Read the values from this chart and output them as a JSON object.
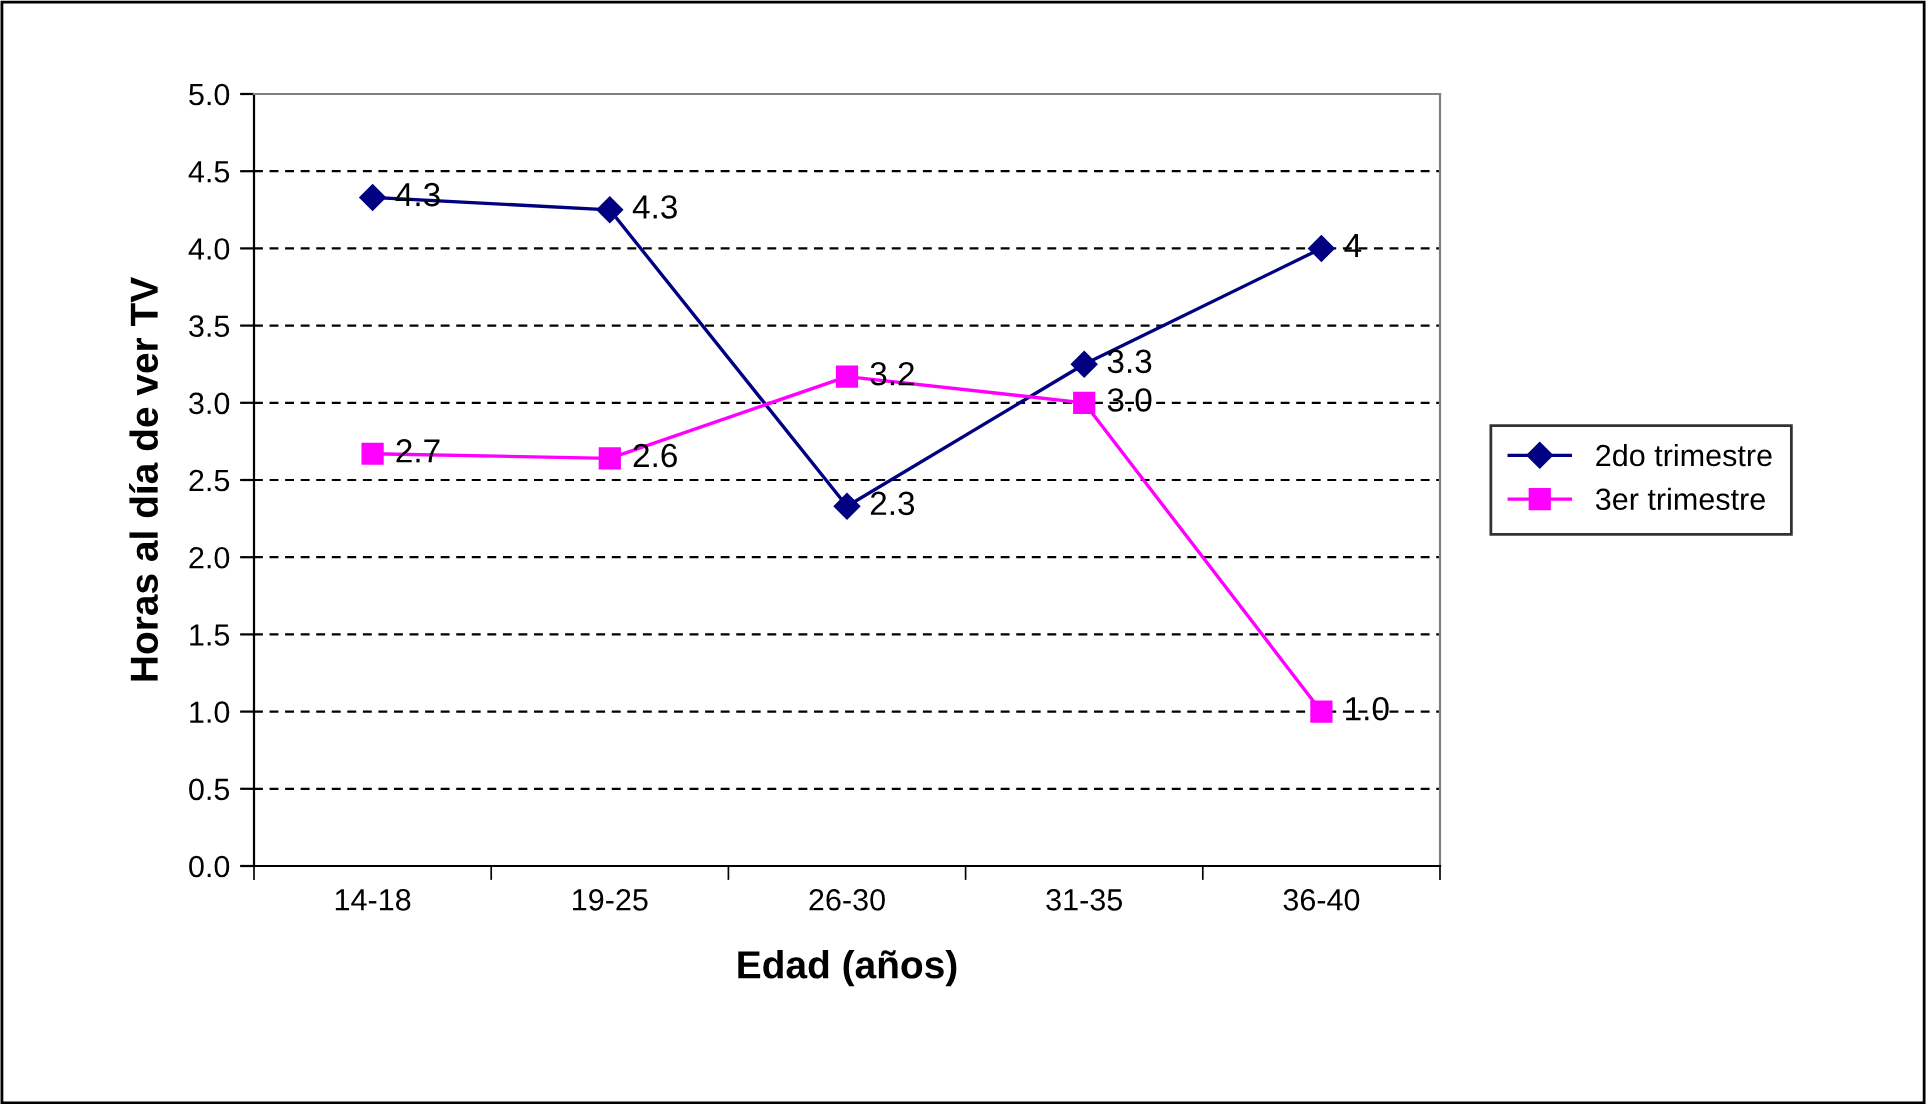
{
  "chart_data": {
    "type": "line",
    "xlabel": "Edad (años)",
    "ylabel": "Horas al día de ver TV",
    "categories": [
      "14-18",
      "19-25",
      "26-30",
      "31-35",
      "36-40"
    ],
    "series": [
      {
        "name": "2do trimestre",
        "color": "#000080",
        "marker": "diamond",
        "values": [
          4.33,
          4.25,
          2.33,
          3.25,
          4.0
        ],
        "value_labels": [
          "4.3",
          "4.3",
          "2.3",
          "3.3",
          "4"
        ]
      },
      {
        "name": "3er trimestre",
        "color": "#ff00ff",
        "marker": "square",
        "values": [
          2.67,
          2.64,
          3.17,
          3.0,
          1.0
        ],
        "value_labels": [
          "2.7",
          "2.6",
          "3.2",
          "3.0",
          "1.0"
        ]
      }
    ],
    "ylim": [
      0,
      5
    ],
    "yticks": [
      "0.0",
      "0.5",
      "1.0",
      "1.5",
      "2.0",
      "2.5",
      "3.0",
      "3.5",
      "4.0",
      "4.5",
      "5.0"
    ],
    "grid": "y",
    "legend": "right",
    "line_style": "solid"
  }
}
